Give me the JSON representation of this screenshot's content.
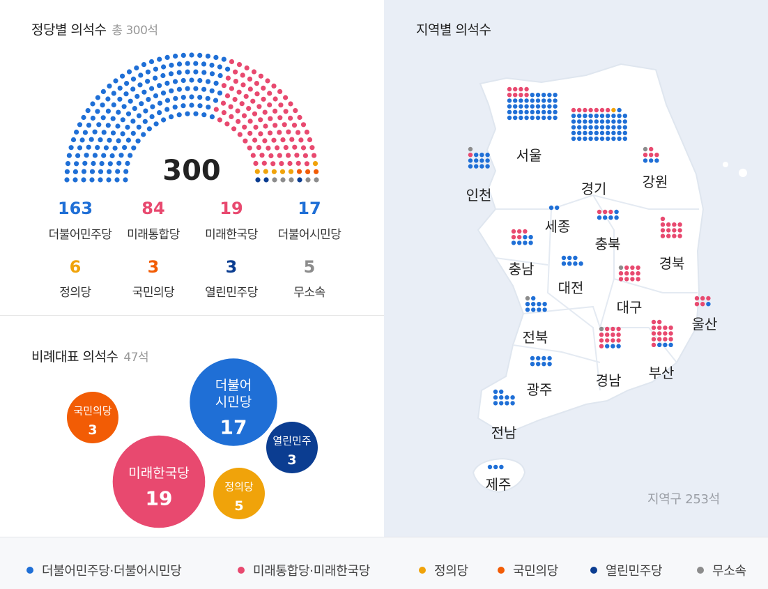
{
  "colors": {
    "dem": "#1f6fd6",
    "utd": "#e8496f",
    "jus": "#f0a30a",
    "ppl": "#f25c05",
    "open": "#0b3d91",
    "ind": "#8c8c8c"
  },
  "parliament": {
    "title": "정당별 의석수",
    "total_label": "총 300석",
    "center_total": "300"
  },
  "party_results": [
    {
      "name": "더불어민주당",
      "seats": "163",
      "color": "#1f6fd6"
    },
    {
      "name": "미래통합당",
      "seats": "84",
      "color": "#e8496f"
    },
    {
      "name": "미래한국당",
      "seats": "19",
      "color": "#e8496f"
    },
    {
      "name": "더불어시민당",
      "seats": "17",
      "color": "#1f6fd6"
    },
    {
      "name": "정의당",
      "seats": "6",
      "color": "#f0a30a"
    },
    {
      "name": "국민의당",
      "seats": "3",
      "color": "#f25c05"
    },
    {
      "name": "열린민주당",
      "seats": "3",
      "color": "#0b3d91"
    },
    {
      "name": "무소속",
      "seats": "5",
      "color": "#8c8c8c"
    }
  ],
  "proportional": {
    "title": "비례대표 의석수",
    "total_label": "47석",
    "bubbles": [
      {
        "lines": [
          "국민의당"
        ],
        "seats": "3",
        "color": "#f25c05"
      },
      {
        "lines": [
          "미래한국당"
        ],
        "seats": "19",
        "color": "#e8496f"
      },
      {
        "lines": [
          "더불어",
          "시민당"
        ],
        "seats": "17",
        "color": "#1f6fd6"
      },
      {
        "lines": [
          "정의당"
        ],
        "seats": "5",
        "color": "#f0a30a"
      },
      {
        "lines": [
          "열린민주"
        ],
        "seats": "3",
        "color": "#0b3d91"
      }
    ]
  },
  "regional": {
    "title": "지역별 의석수",
    "total_label": "지역구 253석",
    "regions": [
      {
        "name": "서울",
        "dem": 41,
        "utd": 8,
        "jus": 0,
        "ind": 0
      },
      {
        "name": "경기",
        "dem": 51,
        "utd": 7,
        "jus": 1,
        "ind": 0
      },
      {
        "name": "인천",
        "dem": 11,
        "utd": 1,
        "jus": 0,
        "ind": 1
      },
      {
        "name": "강원",
        "dem": 3,
        "utd": 4,
        "jus": 0,
        "ind": 1
      },
      {
        "name": "세종",
        "dem": 2,
        "utd": 0,
        "jus": 0,
        "ind": 0
      },
      {
        "name": "충북",
        "dem": 5,
        "utd": 3,
        "jus": 0,
        "ind": 0
      },
      {
        "name": "충남",
        "dem": 6,
        "utd": 5,
        "jus": 0,
        "ind": 0
      },
      {
        "name": "대전",
        "dem": 7,
        "utd": 0,
        "jus": 0,
        "ind": 0
      },
      {
        "name": "경북",
        "dem": 0,
        "utd": 13,
        "jus": 0,
        "ind": 0
      },
      {
        "name": "대구",
        "dem": 0,
        "utd": 11,
        "jus": 0,
        "ind": 1
      },
      {
        "name": "울산",
        "dem": 1,
        "utd": 5,
        "jus": 0,
        "ind": 0
      },
      {
        "name": "전북",
        "dem": 9,
        "utd": 0,
        "jus": 0,
        "ind": 1
      },
      {
        "name": "광주",
        "dem": 8,
        "utd": 0,
        "jus": 0,
        "ind": 0
      },
      {
        "name": "경남",
        "dem": 3,
        "utd": 12,
        "jus": 0,
        "ind": 1
      },
      {
        "name": "부산",
        "dem": 3,
        "utd": 15,
        "jus": 0,
        "ind": 0
      },
      {
        "name": "전남",
        "dem": 10,
        "utd": 0,
        "jus": 0,
        "ind": 0
      },
      {
        "name": "제주",
        "dem": 3,
        "utd": 0,
        "jus": 0,
        "ind": 0
      }
    ]
  },
  "legend": [
    {
      "label": "더불어민주당·더불어시민당",
      "color": "#1f6fd6"
    },
    {
      "label": "미래통합당·미래한국당",
      "color": "#e8496f"
    },
    {
      "label": "정의당",
      "color": "#f0a30a"
    },
    {
      "label": "국민의당",
      "color": "#f25c05"
    },
    {
      "label": "열린민주당",
      "color": "#0b3d91"
    },
    {
      "label": "무소속",
      "color": "#8c8c8c"
    }
  ],
  "chart_data": [
    {
      "type": "hemicycle",
      "title": "정당별 의석수",
      "subtitle": "총 300석",
      "categories": [
        "더불어민주당",
        "미래통합당",
        "미래한국당",
        "더불어시민당",
        "정의당",
        "국민의당",
        "열린민주당",
        "무소속"
      ],
      "values": [
        163,
        84,
        19,
        17,
        6,
        3,
        3,
        5
      ]
    },
    {
      "type": "bubble",
      "title": "비례대표 의석수",
      "subtitle": "47석",
      "categories": [
        "더불어시민당",
        "미래한국당",
        "정의당",
        "국민의당",
        "열린민주당"
      ],
      "values": [
        17,
        19,
        5,
        3,
        3
      ]
    },
    {
      "type": "dot-map",
      "title": "지역별 의석수",
      "subtitle": "지역구 253석",
      "categories": [
        "서울",
        "경기",
        "인천",
        "강원",
        "세종",
        "충북",
        "충남",
        "대전",
        "경북",
        "대구",
        "울산",
        "전북",
        "광주",
        "경남",
        "부산",
        "전남",
        "제주"
      ]
    }
  ]
}
